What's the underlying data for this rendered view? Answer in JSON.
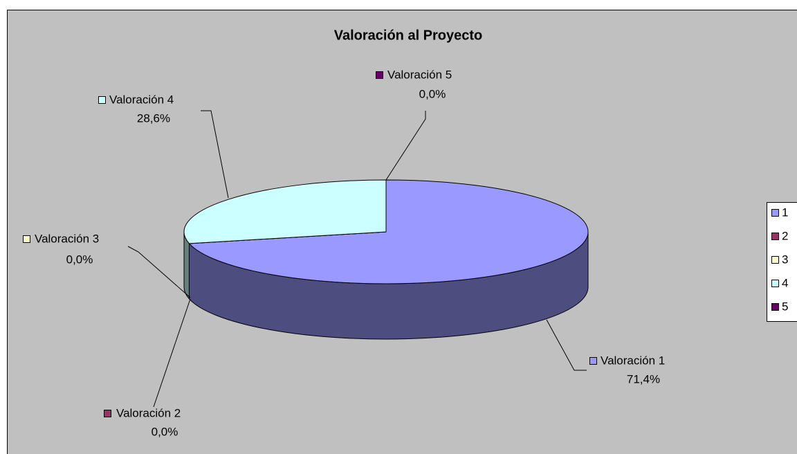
{
  "chart_data": {
    "type": "pie3d",
    "title": "Valoración al Proyecto",
    "categories": [
      "Valoración 1",
      "Valoración 2",
      "Valoración 3",
      "Valoración 4",
      "Valoración 5"
    ],
    "values": [
      71.4,
      0,
      0,
      28.6,
      0
    ],
    "value_labels": [
      "71,4%",
      "0,0%",
      "0,0%",
      "28,6%",
      "0,0%"
    ],
    "colors": [
      "#9999ff",
      "#993366",
      "#ffffcc",
      "#ccffff",
      "#660066"
    ],
    "legend": [
      "1",
      "2",
      "3",
      "4",
      "5"
    ],
    "legend_position": "right"
  }
}
